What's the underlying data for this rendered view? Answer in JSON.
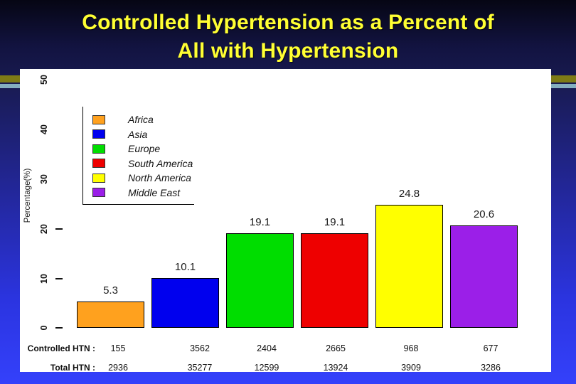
{
  "slide": {
    "title_line1": "Controlled Hypertension as a Percent of",
    "title_line2": "All with Hypertension"
  },
  "colors": {
    "title_text": "#FFFF33",
    "background_top": "#060614",
    "background_bottom": "#3441FB",
    "divider_stripe_olive": "#7E7B16",
    "divider_stripe_lightblue": "#85AFC0",
    "panel_background": "#FFFFFF"
  },
  "chart_data": {
    "type": "bar",
    "title": "",
    "xlabel": "",
    "ylabel": "Percentage(%)",
    "categories": [
      "Africa",
      "Asia",
      "Europe",
      "South America",
      "North America",
      "Middle East"
    ],
    "values": [
      5.3,
      10.1,
      19.1,
      19.1,
      24.8,
      20.6
    ],
    "value_labels": [
      "5.3",
      "10.1",
      "19.1",
      "19.1",
      "24.8",
      "20.6"
    ],
    "bar_colors": [
      "#FFA11E",
      "#0000EE",
      "#00DD00",
      "#EE0000",
      "#FFFF00",
      "#9B1FE8"
    ],
    "yticks": [
      "0",
      "10",
      "20",
      "30",
      "40",
      "50"
    ],
    "ylim": [
      0,
      52
    ],
    "grid": false,
    "legend_position": "upper-left",
    "table": {
      "row1_label": "Controlled HTN :",
      "row1_values": [
        "155",
        "3562",
        "2404",
        "2665",
        "968",
        "677"
      ],
      "row2_label": "Total HTN :",
      "row2_values": [
        "2936",
        "35277",
        "12599",
        "13924",
        "3909",
        "3286"
      ]
    }
  }
}
